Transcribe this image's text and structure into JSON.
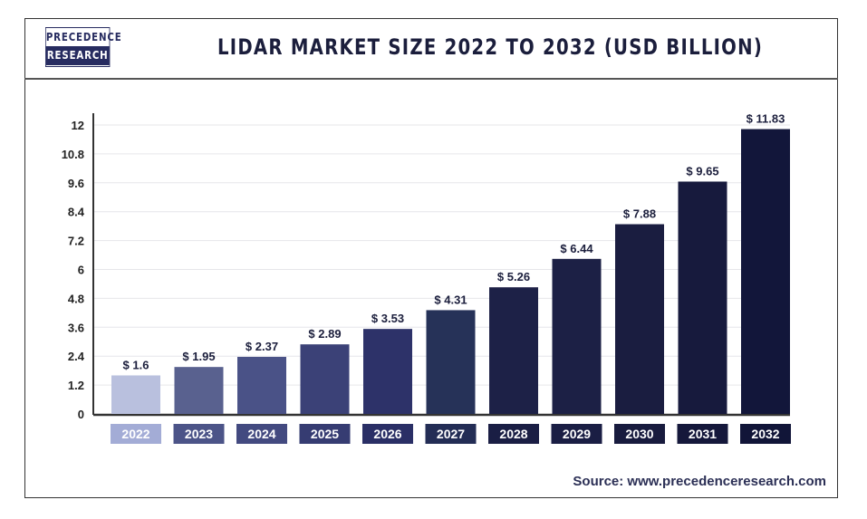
{
  "header": {
    "logo_top": "PRECEDENCE",
    "logo_bottom": "RESEARCH",
    "title": "LIDAR MARKET SIZE 2022 TO 2032 (USD BILLION)"
  },
  "source": "Source: www.precedenceresearch.com",
  "chart_data": {
    "type": "bar",
    "title": "LIDAR MARKET SIZE 2022 TO 2032 (USD BILLION)",
    "xlabel": "",
    "ylabel": "",
    "categories": [
      "2022",
      "2023",
      "2024",
      "2025",
      "2026",
      "2027",
      "2028",
      "2029",
      "2030",
      "2031",
      "2032"
    ],
    "values": [
      1.6,
      1.95,
      2.37,
      2.89,
      3.53,
      4.31,
      5.26,
      6.44,
      7.88,
      9.65,
      11.83
    ],
    "value_labels": [
      "$ 1.6",
      "$ 1.95",
      "$ 2.37",
      "$ 2.89",
      "$ 3.53",
      "$ 4.31",
      "$ 5.26",
      "$ 6.44",
      "$ 7.88",
      "$ 9.65",
      "$ 11.83"
    ],
    "yticks": [
      "0",
      "1.2",
      "2.4",
      "3.6",
      "4.8",
      "6",
      "7.2",
      "8.4",
      "9.6",
      "10.8",
      "12"
    ],
    "ylim": [
      0,
      12
    ],
    "grid": true,
    "colors": [
      "#b9c0de",
      "#59618f",
      "#4a5287",
      "#3b4177",
      "#2d3269",
      "#263258",
      "#1d2147",
      "#1c2045",
      "#1a1d40",
      "#171a3d",
      "#12163a"
    ],
    "label_colors": [
      "#a3acd6",
      "#4c5488",
      "#434a80",
      "#363c72",
      "#2a2f66",
      "#232d55",
      "#1a1e44",
      "#1a1e44",
      "#181b3e",
      "#15183b",
      "#111538"
    ]
  }
}
